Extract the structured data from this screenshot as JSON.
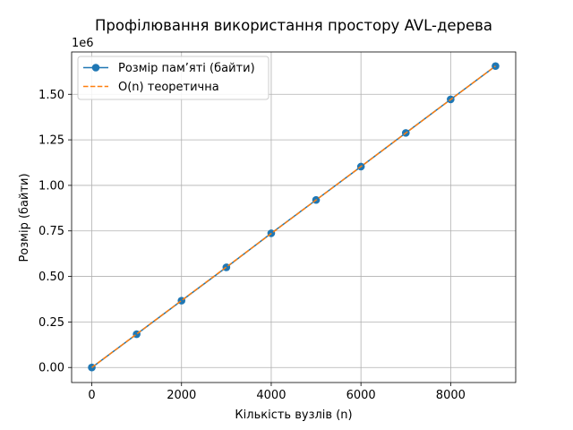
{
  "chart_data": {
    "type": "line",
    "title": "Профілювання використання простору AVL-дерева",
    "xlabel": "Кількість вузлів (n)",
    "ylabel": "Розмір (байти)",
    "y_offset_label": "1e6",
    "xlim": [
      -450,
      9450
    ],
    "ylim": [
      -0.0825,
      1.7325
    ],
    "y_unit_multiplier": 1000000,
    "xticks": [
      0,
      2000,
      4000,
      6000,
      8000
    ],
    "xtick_labels": [
      "0",
      "2000",
      "4000",
      "6000",
      "8000"
    ],
    "yticks": [
      0.0,
      0.25,
      0.5,
      0.75,
      1.0,
      1.25,
      1.5
    ],
    "ytick_labels": [
      "0.00",
      "0.25",
      "0.50",
      "0.75",
      "1.00",
      "1.25",
      "1.50"
    ],
    "grid": true,
    "legend_position": "top-left",
    "x": [
      0,
      1000,
      2000,
      3000,
      4000,
      5000,
      6000,
      7000,
      8000,
      9000
    ],
    "series": [
      {
        "name": "Розмір пам’яті (байти)",
        "style": "solid-with-markers",
        "color": "#1f77b4",
        "values": [
          0.0,
          0.183,
          0.367,
          0.55,
          0.737,
          0.92,
          1.103,
          1.288,
          1.472,
          1.655
        ]
      },
      {
        "name": "O(n) теоретична",
        "style": "dashed",
        "color": "#ff7f0e",
        "values": [
          0.0,
          0.1839,
          0.3678,
          0.5517,
          0.7356,
          0.9195,
          1.1034,
          1.2873,
          1.4712,
          1.6551
        ]
      }
    ]
  }
}
